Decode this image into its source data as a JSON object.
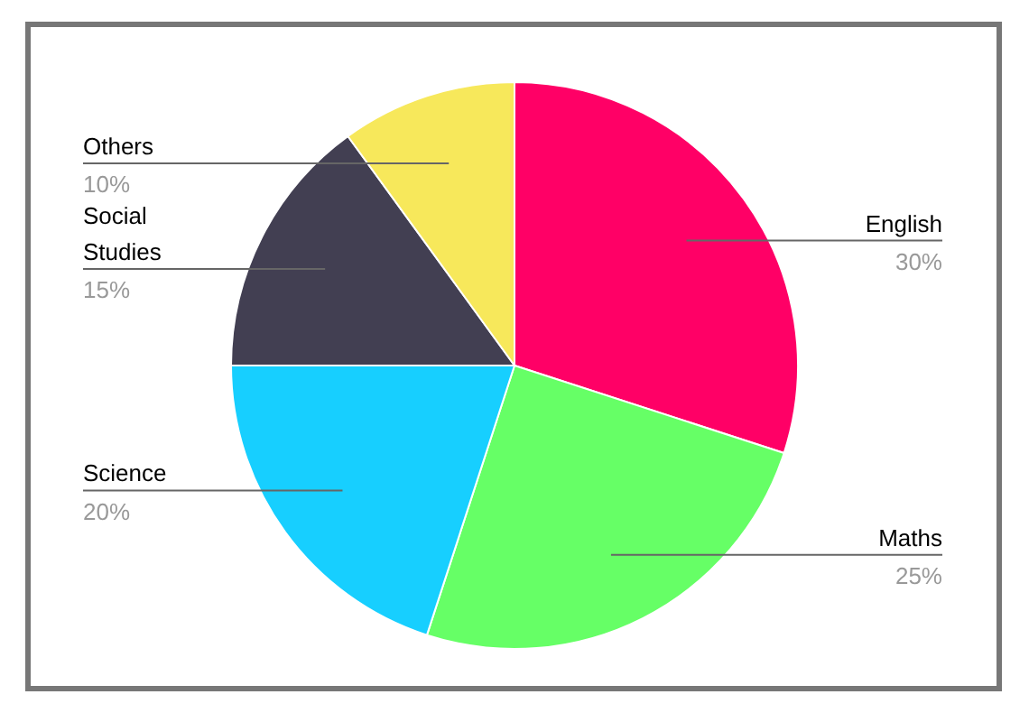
{
  "chart_data": {
    "type": "pie",
    "categories": [
      "English",
      "Maths",
      "Science",
      "Social Studies",
      "Others"
    ],
    "values": [
      30,
      25,
      20,
      15,
      10
    ],
    "colors": [
      "#ff0066",
      "#66ff66",
      "#17cfff",
      "#423f52",
      "#f7e85b"
    ],
    "value_labels": [
      "30%",
      "25%",
      "20%",
      "15%",
      "10%"
    ],
    "legend": false
  }
}
